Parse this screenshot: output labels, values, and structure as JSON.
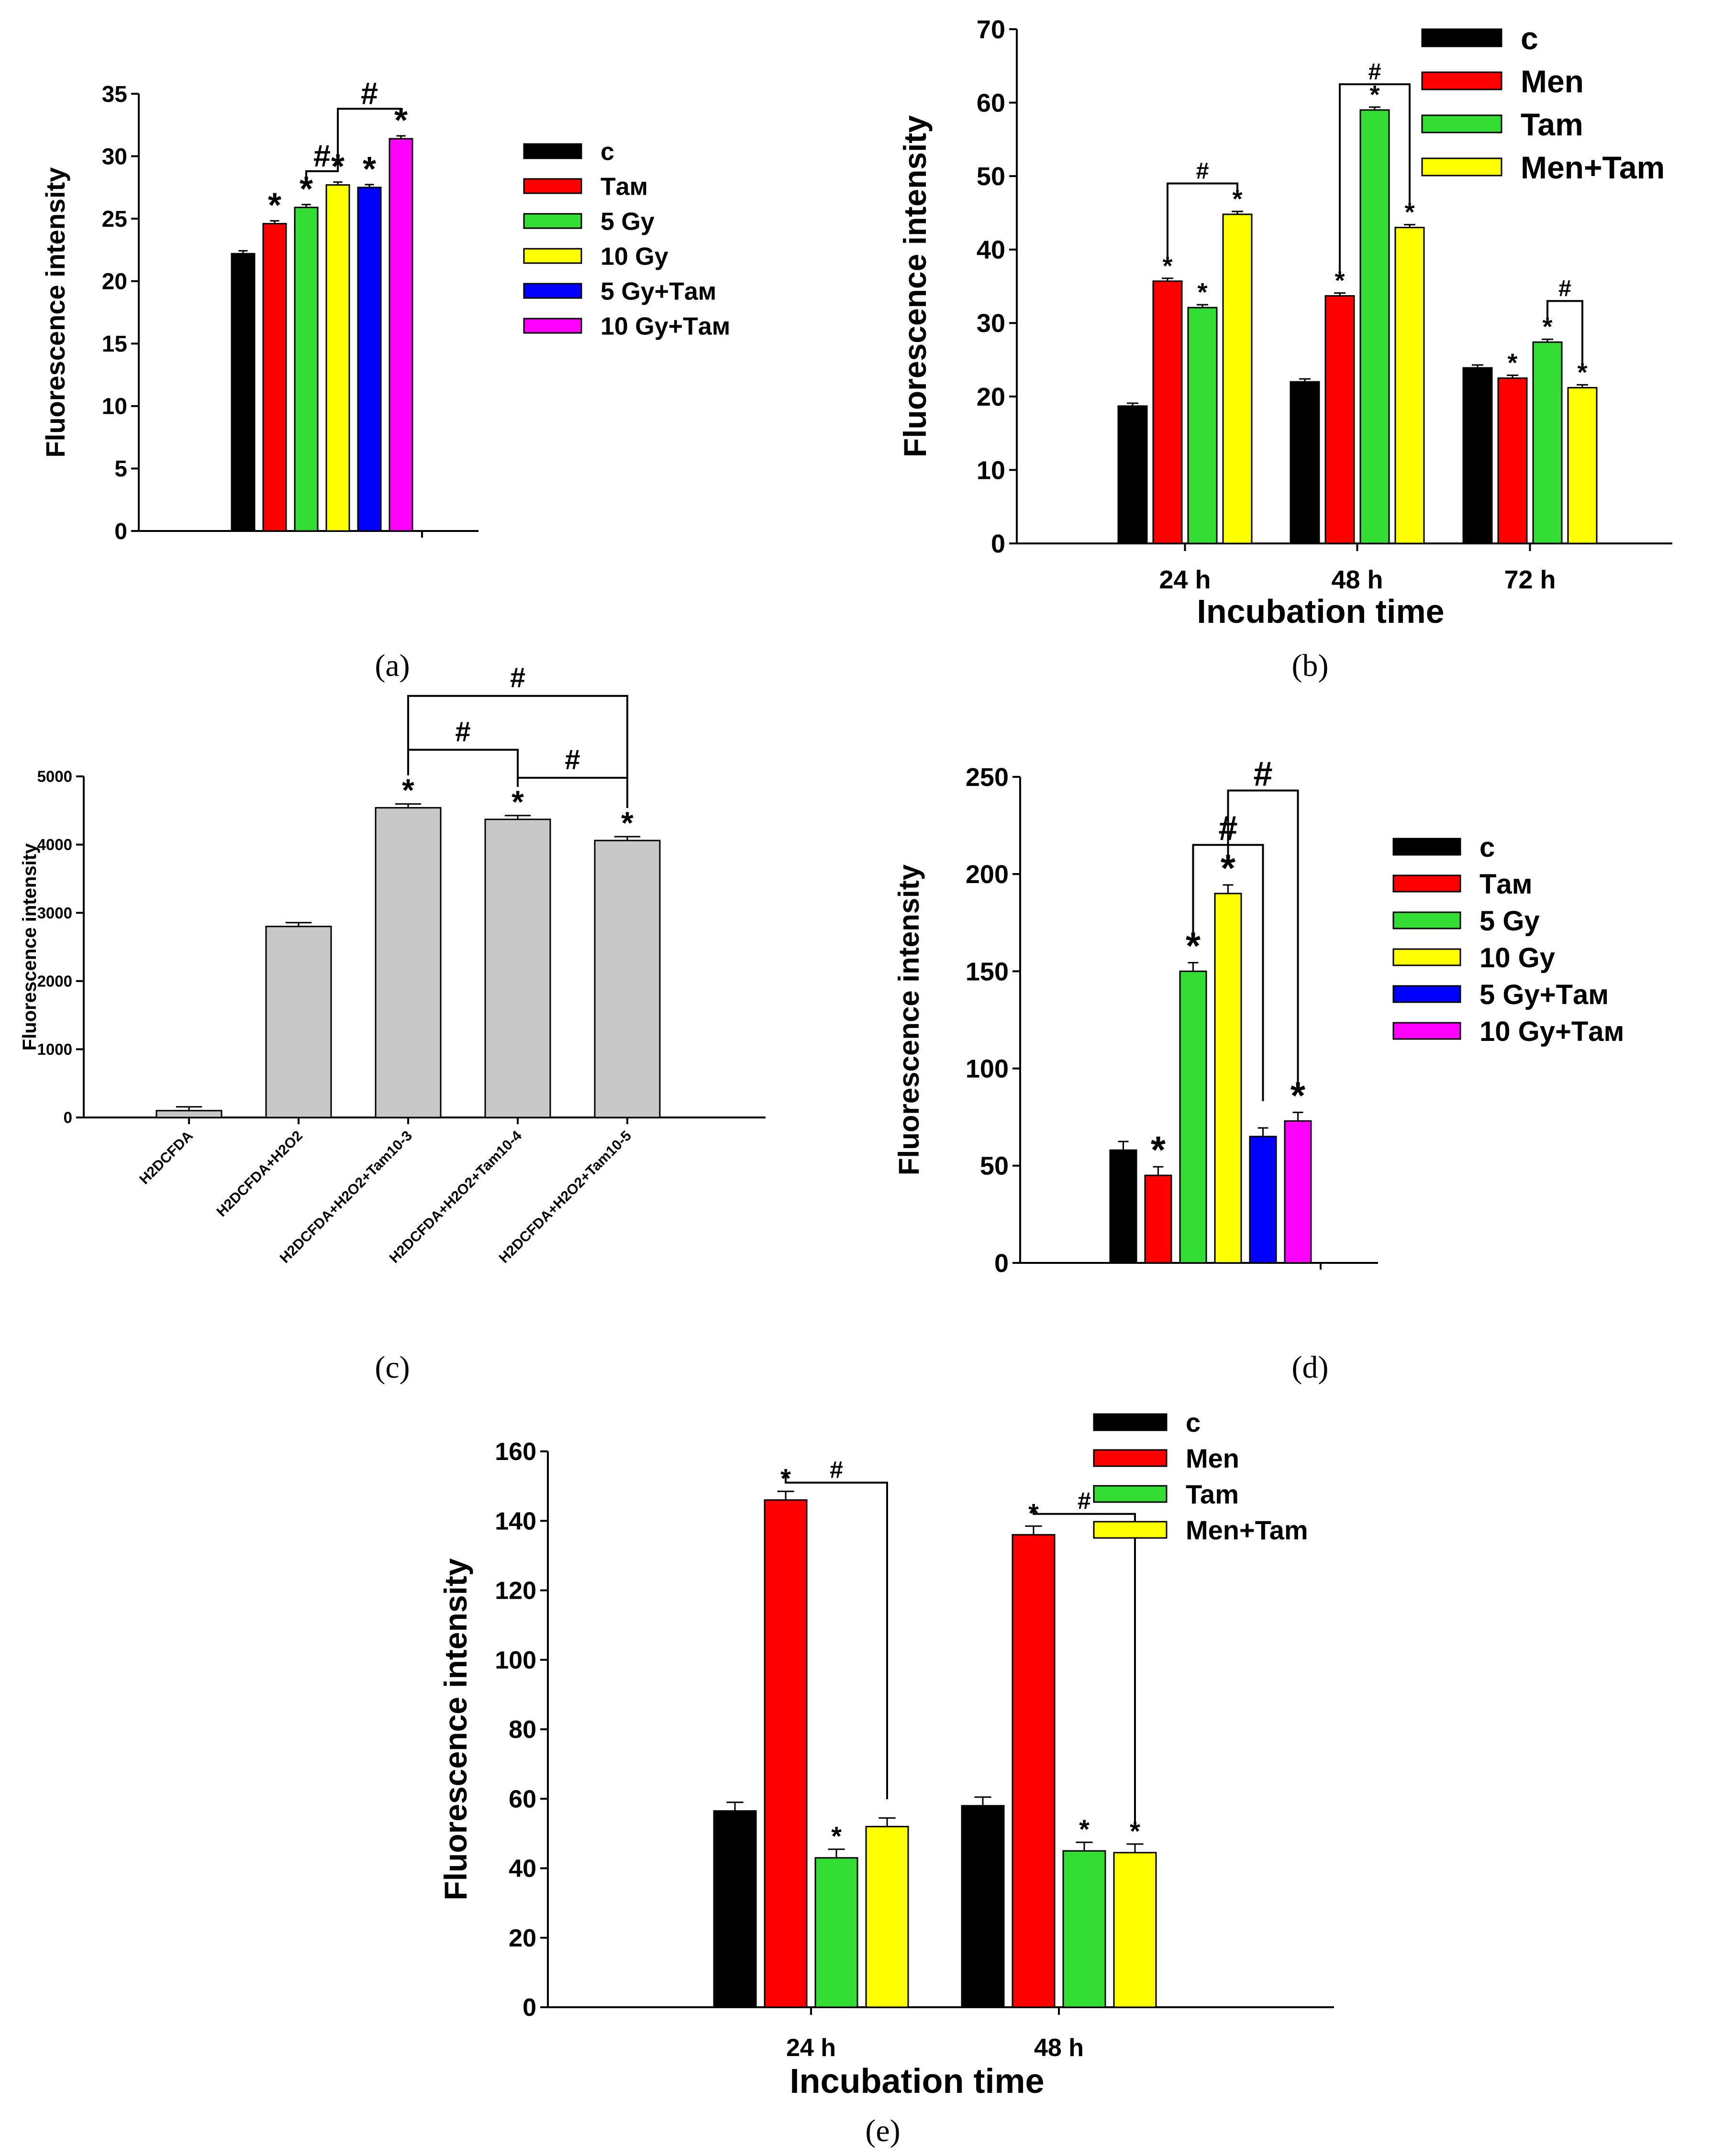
{
  "panels": [
    {
      "id": "a",
      "caption": "(a)",
      "chart_data": {
        "type": "bar",
        "ylabel": "Fluorescence intensity",
        "xlabel": "",
        "ylim": [
          0,
          35
        ],
        "yticks": [
          0,
          5,
          10,
          15,
          20,
          25,
          30,
          35
        ],
        "groups": [
          ""
        ],
        "series": [
          {
            "name": "c",
            "color": "#000000",
            "values": [
              22.2
            ]
          },
          {
            "name": "Tам",
            "color": "#ff0000",
            "values": [
              24.6
            ]
          },
          {
            "name": "5 Gy",
            "color": "#33dd33",
            "values": [
              25.9
            ]
          },
          {
            "name": "10 Gy",
            "color": "#ffff00",
            "values": [
              27.7
            ]
          },
          {
            "name": "5 Gy+Tам",
            "color": "#0000ff",
            "values": [
              27.5
            ]
          },
          {
            "name": "10 Gy+Tам",
            "color": "#ff00ff",
            "values": [
              31.4
            ]
          }
        ],
        "stars": [
          [
            false,
            true,
            true,
            true,
            true,
            true
          ]
        ],
        "brackets": [
          {
            "from": [
              0,
              2
            ],
            "to": [
              0,
              3
            ],
            "level": 28.8,
            "label": "#"
          },
          {
            "from": [
              0,
              3
            ],
            "to": [
              0,
              5
            ],
            "level": 33.8,
            "label": "#"
          }
        ],
        "legend": "right"
      }
    },
    {
      "id": "b",
      "caption": "(b)",
      "chart_data": {
        "type": "bar",
        "ylabel": "Fluorescence intensity",
        "xlabel": "Incubation time",
        "ylim": [
          0,
          70
        ],
        "yticks": [
          0,
          10,
          20,
          30,
          40,
          50,
          60,
          70
        ],
        "groups": [
          "24 h",
          "48 h",
          "72 h"
        ],
        "series": [
          {
            "name": "c",
            "color": "#000000",
            "values": [
              18.7,
              22.0,
              23.9
            ]
          },
          {
            "name": "Men",
            "color": "#ff0000",
            "values": [
              35.7,
              33.7,
              22.5
            ]
          },
          {
            "name": "Tam",
            "color": "#33dd33",
            "values": [
              32.1,
              59.0,
              27.4
            ]
          },
          {
            "name": "Men+Tam",
            "color": "#ffff00",
            "values": [
              44.8,
              43.0,
              21.2
            ]
          }
        ],
        "stars": [
          [
            false,
            true,
            true,
            true
          ],
          [
            false,
            true,
            true,
            true
          ],
          [
            false,
            true,
            true,
            true
          ]
        ],
        "brackets": [
          {
            "from": [
              0,
              1
            ],
            "to": [
              0,
              3
            ],
            "level": 49.0,
            "label": "#"
          },
          {
            "from": [
              1,
              1
            ],
            "to": [
              1,
              3
            ],
            "level": 62.5,
            "label": "#"
          },
          {
            "from": [
              2,
              2
            ],
            "to": [
              2,
              3
            ],
            "level": 33.0,
            "label": "#"
          }
        ],
        "legend": "top-right"
      }
    },
    {
      "id": "c",
      "caption": "(c)",
      "chart_data": {
        "type": "bar",
        "ylabel": "Fluorescence intensity",
        "xlabel": "",
        "ylim": [
          0,
          5000
        ],
        "yticks": [
          0,
          1000,
          2000,
          3000,
          4000,
          5000
        ],
        "categories": [
          "H2DCFDA",
          "H2DCFDA+H2O2",
          "H2DCFDA+H2O2+Tam10-3",
          "H2DCFDA+H2O2+Tam10-4",
          "H2DCFDA+H2O2+Tam10-5"
        ],
        "values": [
          100,
          2800,
          4540,
          4370,
          4060
        ],
        "color": "#c8c8c8",
        "stars": [
          false,
          false,
          true,
          true,
          true
        ],
        "brackets": [
          {
            "from": 2,
            "to": 3,
            "level": 5390,
            "label": "#"
          },
          {
            "from": 3,
            "to": 4,
            "level": 4980,
            "label": "#"
          },
          {
            "from": 2,
            "to": 4,
            "level": 6180,
            "label": "#"
          }
        ]
      }
    },
    {
      "id": "d",
      "caption": "(d)",
      "chart_data": {
        "type": "bar",
        "ylabel": "Fluorescence intensity",
        "xlabel": "",
        "ylim": [
          0,
          250
        ],
        "yticks": [
          0,
          50,
          100,
          150,
          200,
          250
        ],
        "groups": [
          ""
        ],
        "series": [
          {
            "name": "c",
            "color": "#000000",
            "values": [
              58
            ]
          },
          {
            "name": "Tам",
            "color": "#ff0000",
            "values": [
              45
            ]
          },
          {
            "name": "5 Gy",
            "color": "#33dd33",
            "values": [
              150
            ]
          },
          {
            "name": "10 Gy",
            "color": "#ffff00",
            "values": [
              190
            ]
          },
          {
            "name": "5 Gy+Tам",
            "color": "#0000ff",
            "values": [
              65
            ]
          },
          {
            "name": "10 Gy+Tам",
            "color": "#ff00ff",
            "values": [
              73
            ]
          }
        ],
        "stars": [
          [
            false,
            true,
            true,
            true,
            false,
            true
          ]
        ],
        "brackets": [
          {
            "from": [
              0,
              2
            ],
            "to": [
              0,
              4
            ],
            "level": 215,
            "label": "#"
          },
          {
            "from": [
              0,
              3
            ],
            "to": [
              0,
              5
            ],
            "level": 243,
            "label": "#"
          }
        ],
        "legend": "right"
      }
    },
    {
      "id": "e",
      "caption": "(e)",
      "chart_data": {
        "type": "bar",
        "ylabel": "Fluorescence intensity",
        "xlabel": "Incubation time",
        "ylim": [
          0,
          160
        ],
        "yticks": [
          0,
          20,
          40,
          60,
          80,
          100,
          120,
          140,
          160
        ],
        "groups": [
          "24 h",
          "48 h"
        ],
        "series": [
          {
            "name": "c",
            "color": "#000000",
            "values": [
              56.5,
              58.0
            ]
          },
          {
            "name": "Men",
            "color": "#ff0000",
            "values": [
              146.0,
              136.0
            ]
          },
          {
            "name": "Tam",
            "color": "#33dd33",
            "values": [
              43.0,
              45.0
            ]
          },
          {
            "name": "Men+Tam",
            "color": "#ffff00",
            "values": [
              52.0,
              44.5
            ]
          }
        ],
        "stars": [
          [
            false,
            true,
            true,
            false
          ],
          [
            false,
            true,
            true,
            true
          ]
        ],
        "brackets": [
          {
            "from": [
              0,
              1
            ],
            "to": [
              0,
              3
            ],
            "level": 151,
            "label": "#"
          },
          {
            "from": [
              1,
              1
            ],
            "to": [
              1,
              3
            ],
            "level": 142,
            "label": "#"
          }
        ],
        "legend": "top-right"
      }
    }
  ],
  "colors": {
    "axis": "#000000"
  }
}
